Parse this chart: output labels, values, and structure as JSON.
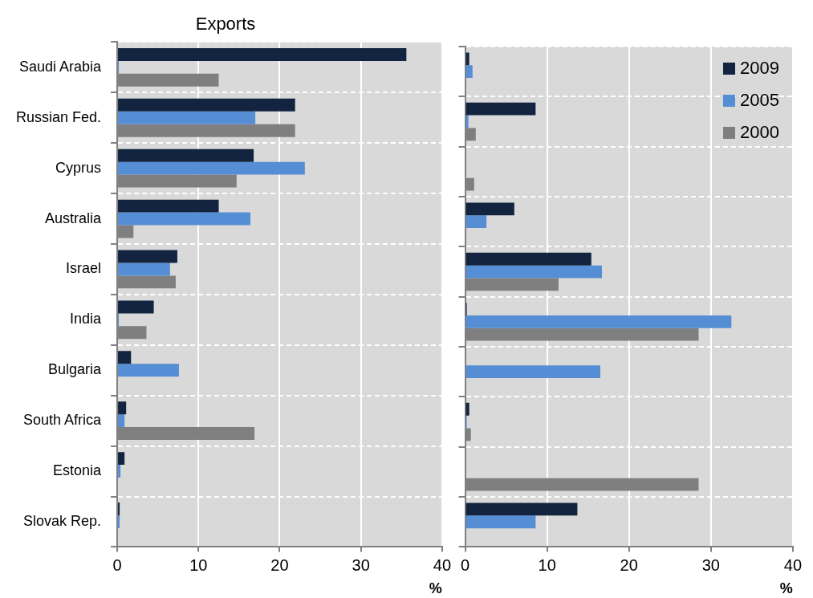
{
  "chart_data": [
    {
      "type": "bar",
      "orientation": "horizontal",
      "title": "Exports",
      "xlabel": "%",
      "categories": [
        "Saudi Arabia",
        "Russian Fed.",
        "Cyprus",
        "Australia",
        "Israel",
        "India",
        "Bulgaria",
        "South Africa",
        "Estonia",
        "Slovak Rep."
      ],
      "series": [
        {
          "color": "#12243f",
          "values": [
            35.6,
            21.9,
            16.8,
            12.5,
            7.4,
            4.5,
            1.7,
            1.1,
            0.9,
            0.3
          ]
        },
        {
          "color": "#558ed5",
          "values": [
            0.2,
            17.0,
            23.1,
            16.4,
            6.5,
            0.2,
            7.6,
            0.9,
            0.4,
            0.3
          ]
        },
        {
          "color": "#7f7f7f",
          "values": [
            12.5,
            21.9,
            14.7,
            2.0,
            7.2,
            3.6,
            0,
            16.9,
            0,
            0
          ]
        }
      ],
      "xlim": [
        0,
        40
      ],
      "xticks": [
        0,
        10,
        20,
        30,
        40
      ],
      "grid": true
    },
    {
      "type": "bar",
      "orientation": "horizontal",
      "xlabel": "%",
      "categories": [
        null,
        null,
        null,
        null,
        null,
        null,
        null,
        null,
        null,
        null
      ],
      "series": [
        {
          "name": "2009",
          "color": "#12243f",
          "values": [
            0.5,
            8.6,
            0,
            6.0,
            15.4,
            0.2,
            0,
            0.5,
            0,
            13.7
          ]
        },
        {
          "name": "2005",
          "color": "#558ed5",
          "values": [
            0.9,
            0.4,
            0,
            2.6,
            16.7,
            32.5,
            16.5,
            0.2,
            0,
            8.6
          ]
        },
        {
          "name": "2000",
          "color": "#7f7f7f",
          "values": [
            0,
            1.3,
            1.1,
            0,
            11.4,
            28.5,
            0,
            0.7,
            28.5,
            0
          ]
        }
      ],
      "xlim": [
        0,
        40
      ],
      "xticks": [
        0,
        10,
        20,
        30,
        40
      ],
      "grid": true,
      "legend": "top right",
      "tick_labels": "x"
    }
  ]
}
